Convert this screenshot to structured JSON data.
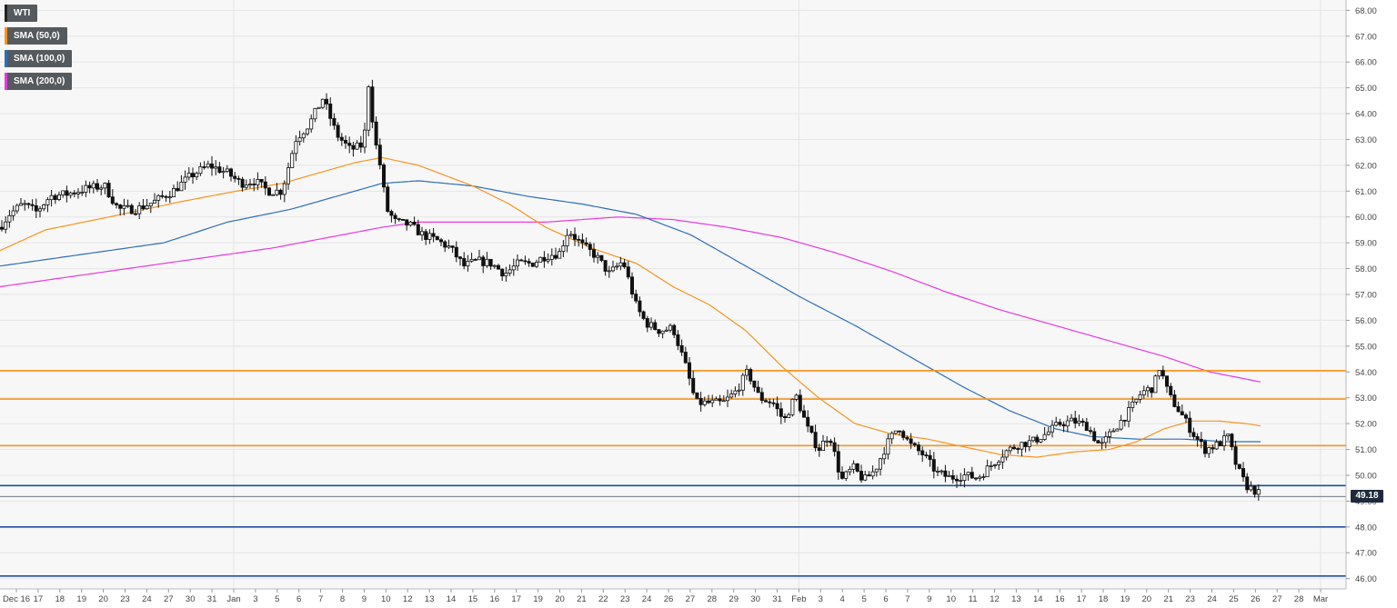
{
  "legend": [
    {
      "label": "WTI",
      "color": "#222222"
    },
    {
      "label": "SMA (50,0)",
      "color": "#f5951f"
    },
    {
      "label": "SMA (100,0)",
      "color": "#2f6fb5"
    },
    {
      "label": "SMA (200,0)",
      "color": "#e83ae0"
    }
  ],
  "last_price_label": "49.18",
  "colors": {
    "background": "#f7f7f7",
    "grid": "#e6e6e6",
    "candle": "#111111",
    "sma50": "#f5951f",
    "sma100": "#2f6fb5",
    "sma200": "#e83ae0",
    "resistance": "#f5951f",
    "support": "#1f4f9e",
    "price_tag": "#1e2a3c"
  },
  "chart_data": {
    "type": "candlestick",
    "instrument": "WTI",
    "ylim": [
      45.6,
      68.4
    ],
    "y_ticks": [
      "68.00",
      "67.00",
      "66.00",
      "65.00",
      "64.00",
      "63.00",
      "62.00",
      "61.00",
      "60.00",
      "59.00",
      "58.00",
      "57.00",
      "56.00",
      "55.00",
      "54.00",
      "53.00",
      "52.00",
      "51.00",
      "50.00",
      "49.00",
      "48.00",
      "47.00",
      "46.00"
    ],
    "x_ticks": [
      "Dec 16",
      "17",
      "18",
      "19",
      "20",
      "23",
      "24",
      "27",
      "30",
      "31",
      "Jan",
      "3",
      "5",
      "6",
      "7",
      "8",
      "9",
      "10",
      "12",
      "13",
      "14",
      "15",
      "16",
      "17",
      "19",
      "20",
      "21",
      "22",
      "23",
      "24",
      "26",
      "27",
      "28",
      "29",
      "30",
      "31",
      "Feb",
      "3",
      "4",
      "5",
      "6",
      "7",
      "9",
      "10",
      "11",
      "12",
      "13",
      "14",
      "16",
      "17",
      "18",
      "19",
      "20",
      "21",
      "23",
      "24",
      "25",
      "26",
      "27",
      "28",
      "Mar"
    ],
    "vertical_grid_labels": [
      "Jan",
      "Feb",
      "Mar"
    ],
    "horizontal_levels": [
      {
        "value": 54.05,
        "role": "resistance"
      },
      {
        "value": 52.95,
        "role": "resistance"
      },
      {
        "value": 51.15,
        "role": "resistance"
      },
      {
        "value": 49.6,
        "role": "support"
      },
      {
        "value": 48.0,
        "role": "support"
      },
      {
        "value": 46.1,
        "role": "support"
      }
    ],
    "last_price": 49.18,
    "price_path": [
      [
        0,
        59.6
      ],
      [
        10,
        60.1
      ],
      [
        25,
        60.5
      ],
      [
        40,
        60.2
      ],
      [
        55,
        60.8
      ],
      [
        75,
        60.9
      ],
      [
        95,
        61.1
      ],
      [
        115,
        61.2
      ],
      [
        130,
        60.3
      ],
      [
        150,
        60.3
      ],
      [
        170,
        60.6
      ],
      [
        190,
        61.0
      ],
      [
        210,
        61.6
      ],
      [
        230,
        62.0
      ],
      [
        250,
        61.7
      ],
      [
        265,
        61.3
      ],
      [
        280,
        61.4
      ],
      [
        295,
        61.0
      ],
      [
        310,
        61.0
      ],
      [
        325,
        63.0
      ],
      [
        340,
        63.6
      ],
      [
        355,
        64.6
      ],
      [
        370,
        63.2
      ],
      [
        385,
        62.6
      ],
      [
        400,
        62.8
      ],
      [
        405,
        65.2
      ],
      [
        412,
        63.0
      ],
      [
        418,
        62.0
      ],
      [
        425,
        60.3
      ],
      [
        435,
        59.8
      ],
      [
        450,
        59.7
      ],
      [
        465,
        59.3
      ],
      [
        480,
        59.1
      ],
      [
        495,
        58.8
      ],
      [
        510,
        58.1
      ],
      [
        525,
        58.3
      ],
      [
        540,
        58.2
      ],
      [
        555,
        57.8
      ],
      [
        570,
        58.2
      ],
      [
        585,
        58.2
      ],
      [
        600,
        58.5
      ],
      [
        615,
        58.6
      ],
      [
        625,
        59.5
      ],
      [
        640,
        58.9
      ],
      [
        655,
        58.5
      ],
      [
        670,
        57.8
      ],
      [
        685,
        58.3
      ],
      [
        700,
        56.5
      ],
      [
        710,
        55.9
      ],
      [
        725,
        55.6
      ],
      [
        740,
        55.7
      ],
      [
        755,
        54.1
      ],
      [
        765,
        52.8
      ],
      [
        780,
        52.8
      ],
      [
        795,
        52.8
      ],
      [
        808,
        53.2
      ],
      [
        822,
        54.0
      ],
      [
        835,
        53.0
      ],
      [
        850,
        52.8
      ],
      [
        862,
        52.1
      ],
      [
        875,
        53.1
      ],
      [
        888,
        51.8
      ],
      [
        900,
        51.0
      ],
      [
        912,
        51.6
      ],
      [
        925,
        49.8
      ],
      [
        938,
        50.3
      ],
      [
        950,
        49.8
      ],
      [
        962,
        50.2
      ],
      [
        975,
        51.2
      ],
      [
        988,
        51.9
      ],
      [
        1000,
        51.2
      ],
      [
        1015,
        50.8
      ],
      [
        1030,
        50.1
      ],
      [
        1045,
        49.9
      ],
      [
        1060,
        50.0
      ],
      [
        1075,
        49.9
      ],
      [
        1090,
        50.4
      ],
      [
        1105,
        50.9
      ],
      [
        1120,
        51.2
      ],
      [
        1135,
        51.3
      ],
      [
        1150,
        51.6
      ],
      [
        1165,
        52.0
      ],
      [
        1180,
        52.1
      ],
      [
        1195,
        51.9
      ],
      [
        1210,
        51.1
      ],
      [
        1225,
        51.8
      ],
      [
        1240,
        52.4
      ],
      [
        1255,
        53.2
      ],
      [
        1268,
        53.4
      ],
      [
        1275,
        54.2
      ],
      [
        1285,
        53.1
      ],
      [
        1300,
        52.3
      ],
      [
        1312,
        51.6
      ],
      [
        1325,
        51.0
      ],
      [
        1340,
        51.2
      ],
      [
        1350,
        51.5
      ],
      [
        1360,
        50.3
      ],
      [
        1370,
        49.6
      ],
      [
        1380,
        49.4
      ],
      [
        1388,
        49.18
      ]
    ],
    "sma50_path": [
      [
        0,
        58.7
      ],
      [
        50,
        59.5
      ],
      [
        120,
        60.0
      ],
      [
        200,
        60.6
      ],
      [
        260,
        61.0
      ],
      [
        310,
        61.3
      ],
      [
        350,
        61.7
      ],
      [
        390,
        62.1
      ],
      [
        420,
        62.3
      ],
      [
        460,
        62.0
      ],
      [
        520,
        61.2
      ],
      [
        560,
        60.5
      ],
      [
        600,
        59.6
      ],
      [
        650,
        58.8
      ],
      [
        700,
        58.2
      ],
      [
        740,
        57.3
      ],
      [
        780,
        56.6
      ],
      [
        820,
        55.6
      ],
      [
        860,
        54.2
      ],
      [
        900,
        53.0
      ],
      [
        940,
        52.0
      ],
      [
        980,
        51.6
      ],
      [
        1020,
        51.4
      ],
      [
        1060,
        51.1
      ],
      [
        1100,
        50.8
      ],
      [
        1140,
        50.7
      ],
      [
        1180,
        50.9
      ],
      [
        1220,
        51.0
      ],
      [
        1250,
        51.3
      ],
      [
        1280,
        51.8
      ],
      [
        1310,
        52.1
      ],
      [
        1340,
        52.1
      ],
      [
        1370,
        52.0
      ],
      [
        1388,
        51.9
      ]
    ],
    "sma100_path": [
      [
        0,
        58.1
      ],
      [
        60,
        58.4
      ],
      [
        120,
        58.7
      ],
      [
        180,
        59.0
      ],
      [
        250,
        59.8
      ],
      [
        320,
        60.3
      ],
      [
        380,
        60.9
      ],
      [
        420,
        61.3
      ],
      [
        460,
        61.4
      ],
      [
        520,
        61.2
      ],
      [
        580,
        60.8
      ],
      [
        640,
        60.5
      ],
      [
        700,
        60.1
      ],
      [
        760,
        59.3
      ],
      [
        820,
        58.1
      ],
      [
        880,
        56.9
      ],
      [
        940,
        55.8
      ],
      [
        1000,
        54.6
      ],
      [
        1060,
        53.4
      ],
      [
        1110,
        52.5
      ],
      [
        1160,
        51.8
      ],
      [
        1200,
        51.5
      ],
      [
        1250,
        51.4
      ],
      [
        1300,
        51.4
      ],
      [
        1350,
        51.3
      ],
      [
        1388,
        51.3
      ]
    ],
    "sma200_path": [
      [
        0,
        57.3
      ],
      [
        100,
        57.8
      ],
      [
        200,
        58.3
      ],
      [
        300,
        58.8
      ],
      [
        360,
        59.2
      ],
      [
        420,
        59.6
      ],
      [
        460,
        59.8
      ],
      [
        520,
        59.8
      ],
      [
        600,
        59.8
      ],
      [
        680,
        60.0
      ],
      [
        740,
        59.9
      ],
      [
        800,
        59.6
      ],
      [
        860,
        59.2
      ],
      [
        920,
        58.6
      ],
      [
        980,
        57.9
      ],
      [
        1040,
        57.1
      ],
      [
        1100,
        56.4
      ],
      [
        1160,
        55.8
      ],
      [
        1220,
        55.2
      ],
      [
        1280,
        54.6
      ],
      [
        1330,
        54.0
      ],
      [
        1388,
        53.6
      ]
    ]
  }
}
